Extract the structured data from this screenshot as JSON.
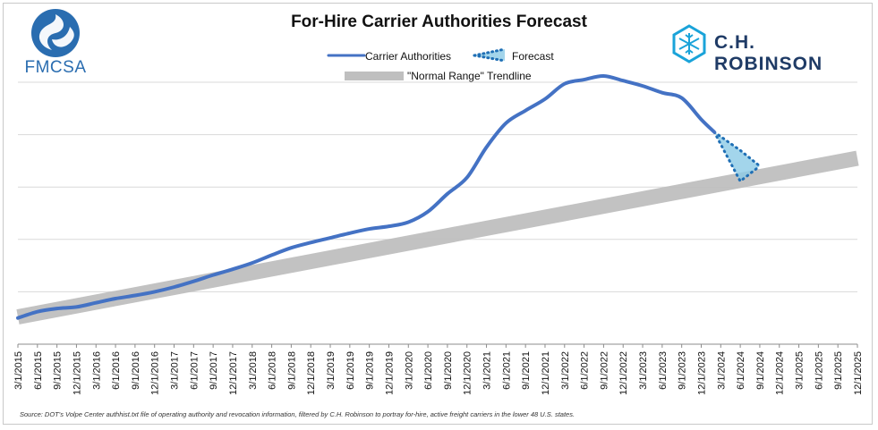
{
  "title": "For-Hire Carrier Authorities Forecast",
  "logos": {
    "left": "FMCSA",
    "right": "C.H. ROBINSON"
  },
  "source_note": "Source: DOT's Volpe Center authhist.txt file of operating authority and revocation information, filtered by C.H. Robinson to portray for-hire, active freight carriers in the lower 48 U.S. states.",
  "colors": {
    "actual": "#4472c4",
    "forecast": "#1f6fb5",
    "forecast_fill": "#8ccbe6",
    "trend": "#bfbfbf",
    "grid": "#d9d9d9",
    "brand_fmcsa": "#2a6db0",
    "brand_chr": "#1aa3d9"
  },
  "chart_data": {
    "type": "line",
    "title": "For-Hire Carrier Authorities Forecast",
    "xlabel": "",
    "ylabel": "",
    "x_tick_labels": [
      "3/1/2015",
      "6/1/2015",
      "9/1/2015",
      "12/1/2015",
      "3/1/2016",
      "6/1/2016",
      "9/1/2016",
      "12/1/2016",
      "3/1/2017",
      "6/1/2017",
      "9/1/2017",
      "12/1/2017",
      "3/1/2018",
      "6/1/2018",
      "9/1/2018",
      "12/1/2018",
      "3/1/2019",
      "6/1/2019",
      "9/1/2019",
      "12/1/2019",
      "3/1/2020",
      "6/1/2020",
      "9/1/2020",
      "12/1/2020",
      "3/1/2021",
      "6/1/2021",
      "9/1/2021",
      "12/1/2021",
      "3/1/2022",
      "6/1/2022",
      "9/1/2022",
      "12/1/2022",
      "3/1/2023",
      "6/1/2023",
      "9/1/2023",
      "12/1/2023",
      "3/1/2024",
      "6/1/2024",
      "9/1/2024",
      "12/1/2024",
      "3/1/2025",
      "6/1/2025",
      "9/1/2025",
      "12/1/2025"
    ],
    "y_range": [
      0,
      5
    ],
    "y_axis_labels_shown": false,
    "grid": true,
    "legend": {
      "position": "top-center",
      "entries": [
        "Carrier Authorities",
        "Forecast",
        "\"Normal Range\" Trendline"
      ]
    },
    "series": [
      {
        "name": "Carrier Authorities",
        "style": "solid",
        "x": [
          "3/1/2015",
          "6/1/2015",
          "9/1/2015",
          "12/1/2015",
          "3/1/2016",
          "6/1/2016",
          "9/1/2016",
          "12/1/2016",
          "3/1/2017",
          "6/1/2017",
          "9/1/2017",
          "12/1/2017",
          "3/1/2018",
          "6/1/2018",
          "9/1/2018",
          "12/1/2018",
          "3/1/2019",
          "6/1/2019",
          "9/1/2019",
          "12/1/2019",
          "3/1/2020",
          "6/1/2020",
          "9/1/2020",
          "12/1/2020",
          "3/1/2021",
          "6/1/2021",
          "9/1/2021",
          "12/1/2021",
          "3/1/2022",
          "6/1/2022",
          "9/1/2022",
          "12/1/2022",
          "3/1/2023",
          "6/1/2023",
          "9/1/2023",
          "12/1/2023",
          "2/1/2024"
        ],
        "values": [
          0.5,
          0.62,
          0.68,
          0.71,
          0.79,
          0.87,
          0.93,
          1.0,
          1.09,
          1.2,
          1.32,
          1.43,
          1.55,
          1.7,
          1.84,
          1.94,
          2.03,
          2.12,
          2.2,
          2.25,
          2.33,
          2.53,
          2.87,
          3.18,
          3.76,
          4.22,
          4.46,
          4.68,
          4.97,
          5.05,
          5.12,
          5.03,
          4.93,
          4.8,
          4.7,
          4.29,
          4.05
        ]
      },
      {
        "name": "Forecast",
        "style": "dotted-band",
        "x": [
          "2/1/2024",
          "6/1/2024",
          "9/1/2024"
        ],
        "upper": [
          4.05,
          3.7,
          3.4
        ],
        "lower": [
          4.05,
          3.11,
          3.4
        ]
      },
      {
        "name": "\"Normal Range\" Trendline",
        "style": "band",
        "x": [
          "3/1/2015",
          "12/1/2025"
        ],
        "values": [
          0.52,
          3.55
        ]
      }
    ]
  }
}
